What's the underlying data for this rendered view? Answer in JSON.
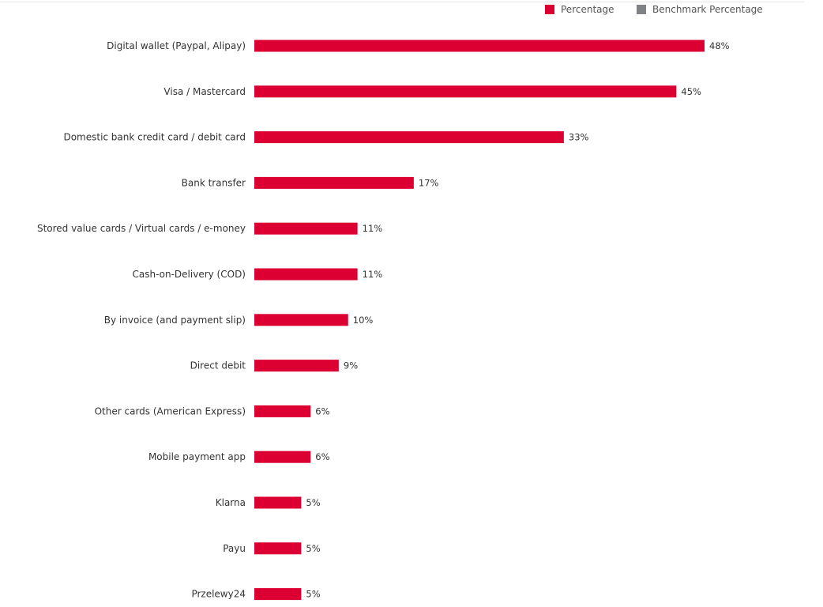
{
  "chart_data": {
    "type": "bar",
    "orientation": "horizontal",
    "categories": [
      "Digital wallet (Paypal, Alipay)",
      "Visa / Mastercard",
      "Domestic bank credit card / debit card",
      "Bank transfer",
      "Stored value cards / Virtual cards / e-money",
      "Cash-on-Delivery (COD)",
      "By invoice (and payment slip)",
      "Direct debit",
      "Other cards (American Express)",
      "Mobile payment app",
      "Klarna",
      "Payu",
      "Przelewy24"
    ],
    "series": [
      {
        "name": "Percentage",
        "color": "#dc0032",
        "values": [
          48,
          45,
          33,
          17,
          11,
          11,
          10,
          9,
          6,
          6,
          5,
          5,
          5
        ]
      }
    ],
    "value_labels": [
      "48%",
      "45%",
      "33%",
      "17%",
      "11%",
      "11%",
      "10%",
      "9%",
      "6%",
      "6%",
      "5%",
      "5%",
      "5%"
    ],
    "legend": {
      "placement": "top-right",
      "entries": [
        {
          "label": "Percentage",
          "color": "#dc0032"
        },
        {
          "label": "Benchmark Percentage",
          "color": "#808285"
        }
      ]
    },
    "title": "",
    "xlabel": "",
    "ylabel": "",
    "xlim": [
      0,
      48
    ],
    "grid": false,
    "axes_visible": false
  }
}
